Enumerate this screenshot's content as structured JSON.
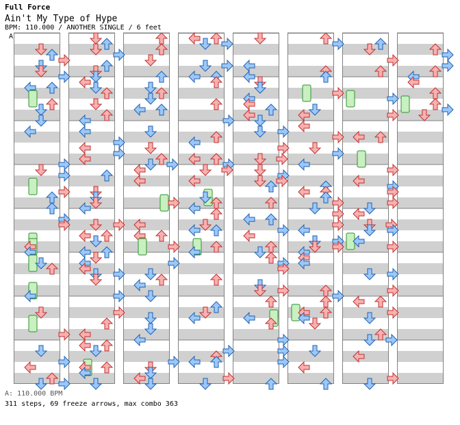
{
  "header": {
    "mix": "Full Force",
    "song_title": "Ain't My Type of Hype",
    "info": "BPM: 110.000 / ANOTHER SINGLE / 6 feet",
    "marker": "A"
  },
  "footer": {
    "bpm": "A: 110.000 BPM",
    "stats": "311 steps, 69 freeze arrows, max combo 363"
  },
  "colors": {
    "stripe": "#d0d0d0",
    "border": "#808080",
    "red_arrow": "#f8b0b0",
    "red_outline": "#c03030",
    "blue_arrow": "#9cc8f8",
    "blue_outline": "#2060b0",
    "freeze": "#c8f0c0",
    "freeze_outline": "#309030",
    "shock": "#f0b0f0"
  },
  "icons": {
    "left": "left-arrow-icon",
    "down": "down-arrow-icon",
    "up": "up-arrow-icon",
    "right": "right-arrow-icon",
    "freeze": "freeze-arrow-icon"
  }
}
